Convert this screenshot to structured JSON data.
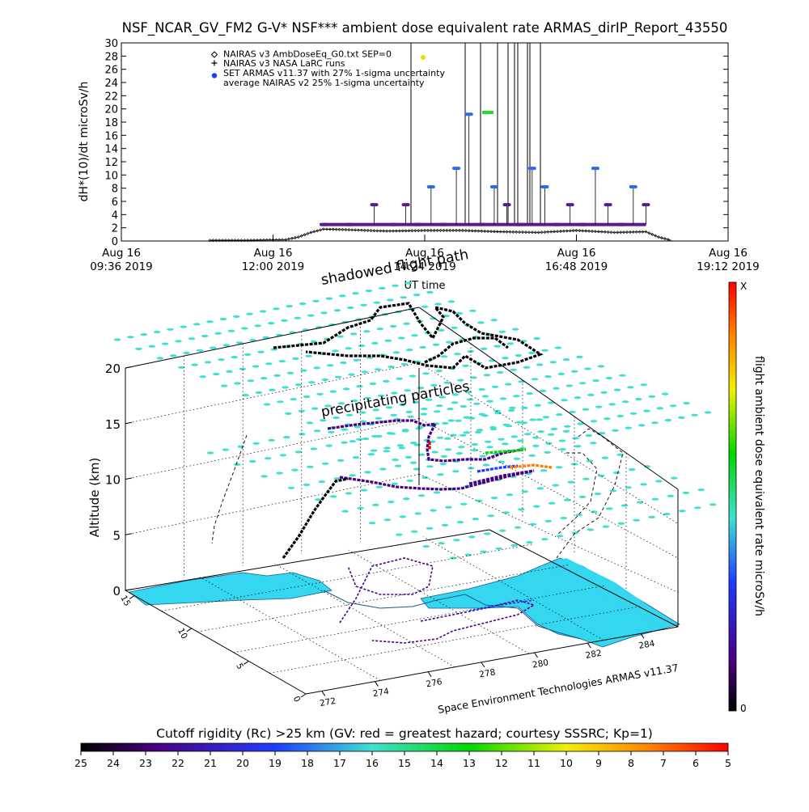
{
  "chart_data": [
    {
      "type": "line",
      "title": "NSF_NCAR_GV_FM2 G-V* NSF*** ambient dose equivalent rate ARMAS_dirIP_Report_43550",
      "ylabel": "dH*(10)/dt microSv/h",
      "xlabel": "UT time",
      "ylim": [
        0,
        30
      ],
      "yticks": [
        "0",
        "2",
        "4",
        "6",
        "8",
        "10",
        "12",
        "14",
        "16",
        "18",
        "20",
        "22",
        "24",
        "26",
        "28",
        "30"
      ],
      "xlim_hours": [
        9.6,
        19.2
      ],
      "xticks": [
        {
          "line1": "Aug 16",
          "line2": "09:36 2019"
        },
        {
          "line1": "Aug 16",
          "line2": "12:00 2019"
        },
        {
          "line1": "Aug 16",
          "line2": "14:24 2019"
        },
        {
          "line1": "Aug 16",
          "line2": "16:48 2019"
        },
        {
          "line1": "Aug 16",
          "line2": "19:12 2019"
        }
      ],
      "legend_position": "top-left",
      "legend": [
        {
          "symbol": "diamond",
          "label": "NAIRAS v3 AmbDoseEq_G0.txt SEP=0"
        },
        {
          "symbol": "plus",
          "label": "NAIRAS v3 NASA LaRC runs"
        },
        {
          "symbol": "blue-dot",
          "label": "SET ARMAS v11.37 with 27% 1-sigma uncertainty"
        },
        {
          "symbol": "none",
          "label": "average NAIRAS v2 25% 1-sigma uncertainty"
        }
      ],
      "series": [
        {
          "name": "NAIRAS v3 AmbDoseEq_G0.txt SEP=0",
          "x_hours": [
            11.0,
            11.6,
            12.2,
            12.4,
            12.6,
            12.8,
            13.2,
            13.8,
            14.4,
            15.0,
            15.6,
            16.2,
            16.8,
            17.4,
            17.9,
            18.1,
            18.3
          ],
          "y": [
            0.1,
            0.1,
            0.2,
            0.6,
            1.3,
            1.8,
            1.7,
            1.5,
            1.6,
            1.6,
            1.4,
            1.3,
            1.6,
            1.3,
            1.4,
            0.6,
            0.1
          ]
        },
        {
          "name": "SET ARMAS v11.37 with 27% 1-sigma uncertainty",
          "x_hours": [
            12.8,
            13.2,
            13.6,
            13.9,
            14.1,
            14.3,
            14.5,
            14.7,
            14.9,
            15.1,
            15.3,
            15.5,
            15.7,
            15.9,
            16.1,
            16.3,
            16.5,
            16.7,
            16.9,
            17.1,
            17.3,
            17.5,
            17.7,
            17.9
          ],
          "y": [
            2.5,
            2.5,
            5.5,
            2.5,
            5.5,
            2.5,
            8.2,
            2.5,
            11.0,
            19.2,
            2.5,
            8.2,
            5.5,
            2.5,
            11.0,
            8.2,
            2.5,
            5.5,
            2.5,
            11.0,
            5.5,
            2.5,
            8.2,
            5.5
          ]
        }
      ]
    },
    {
      "type": "scatter",
      "subtype": "3d-flight-track",
      "zlabel": "Altitude (km)",
      "zlim": [
        0,
        20
      ],
      "zticks": [
        "0",
        "5",
        "10",
        "15",
        "20"
      ],
      "lon_ticks": [
        "272",
        "274",
        "276",
        "278",
        "280",
        "282",
        "284"
      ],
      "lat_ticks": [
        "0",
        "5",
        "10",
        "15"
      ],
      "annotations": [
        "shadowed flight path",
        "precipitating particles"
      ],
      "credit": "Space Environment Technologies ARMAS v11.37",
      "colorbar_right": {
        "label": "flight ambient dose equivalent rate microSv/h",
        "max_label": "X",
        "min_label": "0"
      },
      "colorbar_bottom": {
        "label": "Cutoff rigidity (Rc) >25 km (GV: red = greatest hazard; courtesy SSSRC; Kp=1)",
        "ticks": [
          "25",
          "24",
          "23",
          "22",
          "21",
          "20",
          "19",
          "18",
          "17",
          "16",
          "15",
          "14",
          "13",
          "12",
          "11",
          "10",
          "9",
          "8",
          "7",
          "6",
          "5"
        ]
      }
    }
  ],
  "colors": {
    "armas_points": "#5b1a8a",
    "armas_high": "#2a6cf0",
    "track_cyan": "#40e0d0",
    "ocean_cyan": "#34d6f0",
    "spike_yellow": "#e8e000",
    "spike_green": "#22dd22"
  }
}
